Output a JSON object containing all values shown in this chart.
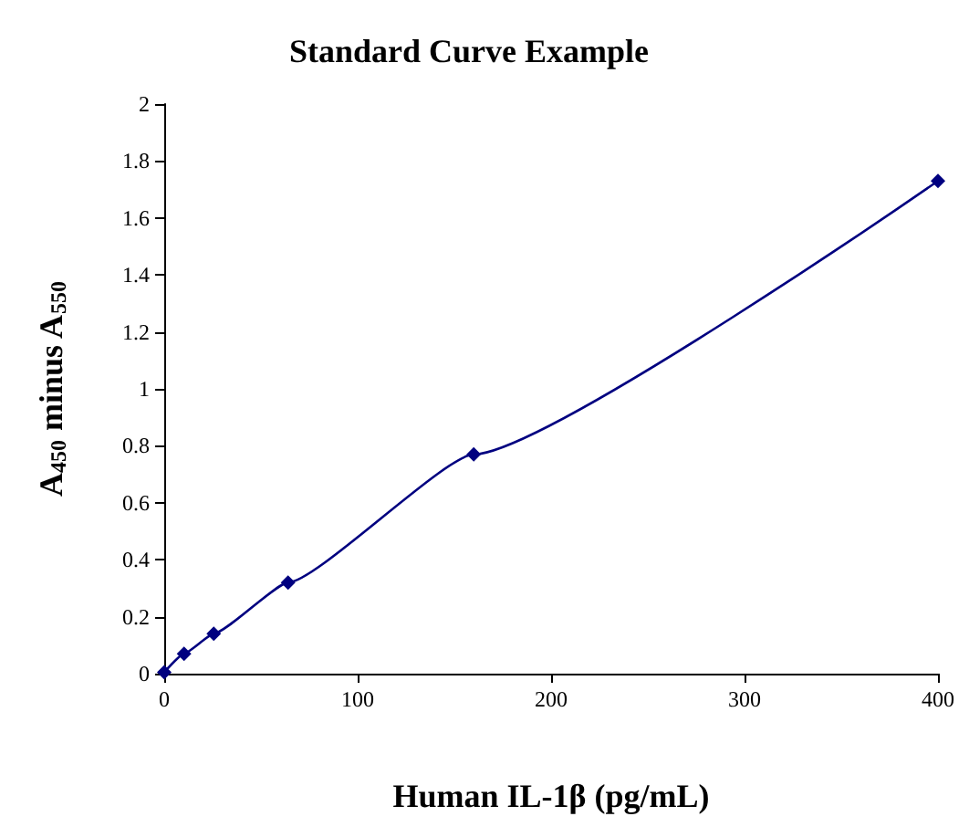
{
  "chart_data": {
    "type": "line",
    "title": "Standard Curve Example",
    "xlabel": "Human IL-1β (pg/mL)",
    "ylabel": "A$_{450}$ minus A$_{550}$",
    "x": [
      0,
      10.24,
      25.6,
      64,
      160,
      400
    ],
    "series": [
      {
        "color": "#000080",
        "values": [
          0.005,
          0.07,
          0.14,
          0.32,
          0.77,
          1.73
        ]
      }
    ],
    "xlim": [
      0,
      400
    ],
    "xticks": [
      0,
      100,
      200,
      300,
      400
    ],
    "ylim": [
      0,
      2
    ],
    "yticks": [
      0,
      0.2,
      0.4,
      0.6,
      0.8,
      1,
      1.2,
      1.4,
      1.6,
      1.8,
      2
    ],
    "grid": false,
    "marker": "diamond",
    "line_style": "solid"
  }
}
